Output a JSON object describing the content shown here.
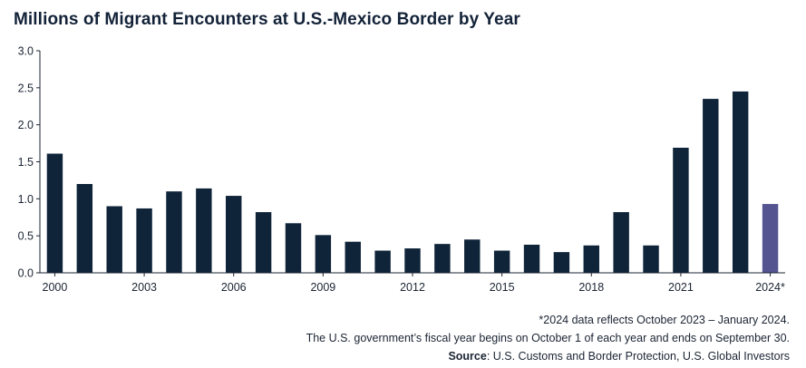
{
  "chart_data": {
    "type": "bar",
    "title": "Millions of Migrant Encounters at U.S.-Mexico Border by Year",
    "xlabel": "",
    "ylabel": "",
    "ylim": [
      0,
      3.0
    ],
    "yticks": [
      "0.0",
      "0.5",
      "1.0",
      "1.5",
      "2.0",
      "2.5",
      "3.0"
    ],
    "categories": [
      "2000",
      "2001",
      "2002",
      "2003",
      "2004",
      "2005",
      "2006",
      "2007",
      "2008",
      "2009",
      "2010",
      "2011",
      "2012",
      "2013",
      "2014",
      "2015",
      "2016",
      "2017",
      "2018",
      "2019",
      "2020",
      "2021",
      "2022",
      "2023",
      "2024*"
    ],
    "tick_labels": {
      "2000": "2000",
      "2003": "2003",
      "2006": "2006",
      "2009": "2009",
      "2012": "2012",
      "2015": "2015",
      "2018": "2018",
      "2021": "2021",
      "2024*": "2024*"
    },
    "values": [
      1.61,
      1.2,
      0.9,
      0.87,
      1.1,
      1.14,
      1.04,
      0.82,
      0.67,
      0.51,
      0.42,
      0.3,
      0.33,
      0.39,
      0.45,
      0.3,
      0.38,
      0.28,
      0.37,
      0.82,
      0.37,
      1.69,
      2.35,
      2.45,
      0.93
    ],
    "bar_color": "#0f2439",
    "highlight_color": "#545491",
    "highlight_index": 24,
    "grid": false,
    "legend": "none"
  },
  "notes": {
    "line1": "*2024 data reflects October 2023 – January 2024.",
    "line2": "The U.S. government’s fiscal year begins on October 1 of each year and ends on September 30.",
    "source_label": "Source",
    "source_text": ": U.S. Customs and Border Protection, U.S. Global Investors"
  }
}
